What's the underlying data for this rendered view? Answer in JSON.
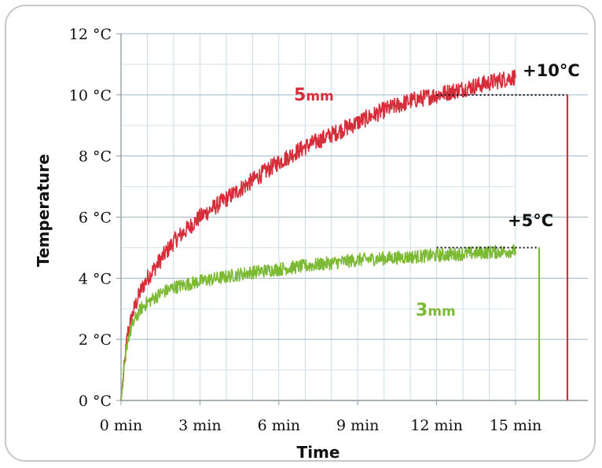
{
  "chart_data": {
    "type": "line",
    "title": "",
    "xlabel": "Time",
    "ylabel": "Temperature",
    "xlim": [
      0,
      15
    ],
    "ylim": [
      0,
      12
    ],
    "grid": true,
    "x_ticks": [
      0,
      3,
      6,
      9,
      12,
      15
    ],
    "x_tick_labels": [
      "0 min",
      "3 min",
      "6 min",
      "9 min",
      "12 min",
      "15 min"
    ],
    "y_ticks": [
      0,
      2,
      4,
      6,
      8,
      10,
      12
    ],
    "y_tick_labels": [
      "0 °C",
      "2 °C",
      "4 °C",
      "6 °C",
      "8 °C",
      "10 °C",
      "12 °C"
    ],
    "series": [
      {
        "name": "5mm",
        "color": "#d62d3a",
        "x": [
          0,
          0.25,
          0.5,
          0.75,
          1,
          1.5,
          2,
          2.5,
          3,
          4,
          5,
          6,
          7,
          8,
          9,
          10,
          11,
          12,
          13,
          14,
          15
        ],
        "y": [
          0,
          2.2,
          3.0,
          3.6,
          4.0,
          4.6,
          5.2,
          5.6,
          6.0,
          6.6,
          7.2,
          7.8,
          8.3,
          8.7,
          9.1,
          9.5,
          9.8,
          10.0,
          10.2,
          10.4,
          10.6
        ]
      },
      {
        "name": "3mm",
        "color": "#7cb934",
        "x": [
          0,
          0.25,
          0.5,
          0.75,
          1,
          1.5,
          2,
          2.5,
          3,
          4,
          5,
          6,
          7,
          8,
          9,
          10,
          11,
          12,
          13,
          14,
          15
        ],
        "y": [
          0,
          2.0,
          2.6,
          3.0,
          3.2,
          3.5,
          3.7,
          3.8,
          3.9,
          4.05,
          4.2,
          4.3,
          4.4,
          4.5,
          4.6,
          4.65,
          4.7,
          4.75,
          4.8,
          4.85,
          4.9
        ]
      }
    ],
    "annotations": [
      {
        "text": "5",
        "unit": "mm",
        "color": "#d62d3a"
      },
      {
        "text": "3",
        "unit": "mm",
        "color": "#7cb934"
      },
      {
        "text": "+10°C",
        "level": 10,
        "color": "#111111",
        "line_color": "#d62d3a"
      },
      {
        "text": "+5°C",
        "level": 5,
        "color": "#111111",
        "line_color": "#7cb934"
      }
    ]
  }
}
